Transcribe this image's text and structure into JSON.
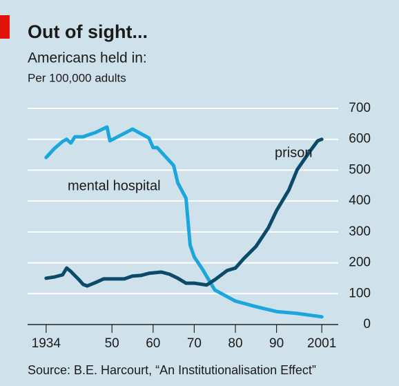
{
  "chart_data": {
    "type": "line",
    "title": "Out of sight...",
    "subtitle": "Americans held in:",
    "y_label": "Per 100,000 adults",
    "source": "Source: B.E. Harcourt, “An Institutionalisation Effect”",
    "xlim": [
      1929.5,
      2005
    ],
    "xticks": [
      {
        "value": 1934,
        "label": "1934"
      },
      {
        "value": 1950,
        "label": "50"
      },
      {
        "value": 1960,
        "label": "60"
      },
      {
        "value": 1970,
        "label": "70"
      },
      {
        "value": 1980,
        "label": "80"
      },
      {
        "value": 1990,
        "label": "90"
      },
      {
        "value": 2001,
        "label": "2001"
      }
    ],
    "ylim": [
      0,
      700
    ],
    "yticks": [
      0,
      100,
      200,
      300,
      400,
      500,
      600,
      700
    ],
    "grid": true,
    "series": [
      {
        "name": "mental hospital",
        "color": "#1ba6dc",
        "x": [
          1934,
          1936,
          1938,
          1939,
          1940,
          1941,
          1943,
          1944,
          1946,
          1948.8,
          1949.5,
          1955,
          1959,
          1960,
          1961,
          1965,
          1966,
          1968,
          1969,
          1970,
          1972,
          1975,
          1980,
          1985,
          1990,
          1995,
          2001
        ],
        "values": [
          541,
          570,
          593,
          600,
          588,
          608,
          608,
          613,
          622,
          640,
          595,
          633,
          604,
          573,
          573,
          515,
          459,
          409,
          257,
          219,
          179,
          112,
          76,
          58,
          42,
          36,
          25
        ]
      },
      {
        "name": "prison",
        "color": "#0b4b69",
        "x": [
          1934,
          1936,
          1938,
          1939,
          1940,
          1942,
          1943,
          1944,
          1946,
          1948,
          1950,
          1953,
          1955,
          1957,
          1959,
          1962,
          1964,
          1966,
          1968,
          1970,
          1973,
          1975,
          1978,
          1980,
          1982,
          1985,
          1988,
          1990,
          1993,
          1995,
          1998,
          2000,
          2001
        ],
        "values": [
          150,
          154,
          161,
          183,
          172,
          145,
          130,
          125,
          136,
          148,
          148,
          148,
          157,
          159,
          166,
          170,
          163,
          150,
          134,
          134,
          128,
          145,
          175,
          183,
          213,
          253,
          313,
          369,
          436,
          501,
          559,
          595,
          600
        ]
      }
    ]
  }
}
